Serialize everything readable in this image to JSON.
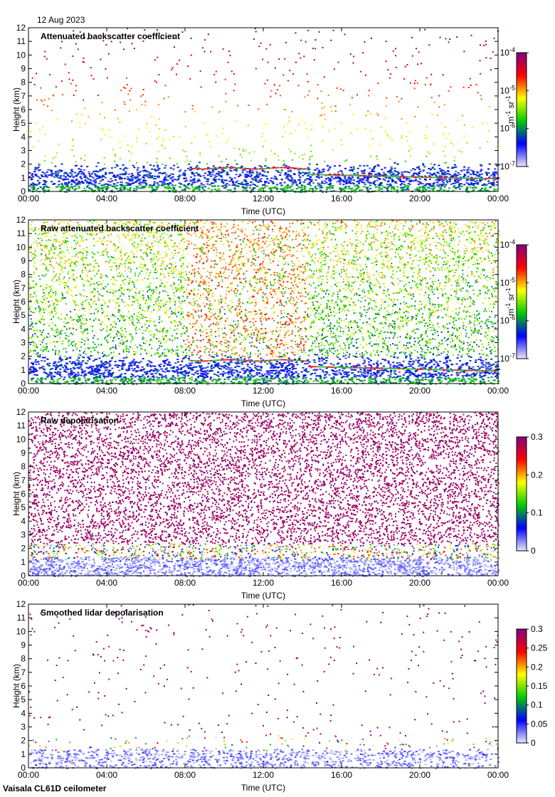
{
  "header": {
    "date": "12 Aug 2023"
  },
  "footer": {
    "instrument": "Vaisala CL61D ceilometer"
  },
  "colors": {
    "scale": [
      "#e8e8ff",
      "#0000ff",
      "#00cc00",
      "#ffff00",
      "#ff0000",
      "#800080"
    ]
  },
  "chart_data": [
    {
      "type": "heatmap",
      "title": "Attenuated backscatter coefficient",
      "xlabel": "Time (UTC)",
      "ylabel": "Height (km)",
      "xlim": [
        "00:00",
        "00:00"
      ],
      "xticks": [
        "00:00",
        "04:00",
        "08:00",
        "12:00",
        "16:00",
        "20:00",
        "00:00"
      ],
      "ylim": [
        0,
        12
      ],
      "yticks": [
        "0",
        "1",
        "2",
        "3",
        "4",
        "5",
        "6",
        "7",
        "8",
        "9",
        "10",
        "11",
        "12"
      ],
      "colorbar": {
        "scale": "log",
        "range": [
          1e-07,
          0.0001
        ],
        "ticks": [
          {
            "base": "10",
            "exp": "-4"
          },
          {
            "base": "10",
            "exp": "-5"
          },
          {
            "base": "10",
            "exp": "-6"
          },
          {
            "base": "10",
            "exp": "-7"
          }
        ],
        "unit": {
          "a": "m",
          "ae": "-1",
          "b": "sr",
          "be": "-1"
        }
      }
    },
    {
      "type": "heatmap",
      "title": "Raw attenuated backscatter coefficient",
      "xlabel": "Time (UTC)",
      "ylabel": "Height (km)",
      "xlim": [
        "00:00",
        "00:00"
      ],
      "xticks": [
        "00:00",
        "04:00",
        "08:00",
        "12:00",
        "16:00",
        "20:00",
        "00:00"
      ],
      "ylim": [
        0,
        12
      ],
      "yticks": [
        "0",
        "1",
        "2",
        "3",
        "4",
        "5",
        "6",
        "7",
        "8",
        "9",
        "10",
        "11",
        "12"
      ],
      "colorbar": {
        "scale": "log",
        "range": [
          1e-07,
          0.0001
        ],
        "ticks": [
          {
            "base": "10",
            "exp": "-4"
          },
          {
            "base": "10",
            "exp": "-5"
          },
          {
            "base": "10",
            "exp": "-6"
          },
          {
            "base": "10",
            "exp": "-7"
          }
        ],
        "unit": {
          "a": "m",
          "ae": "-1",
          "b": "sr",
          "be": "-1"
        }
      }
    },
    {
      "type": "heatmap",
      "title": "Raw depolarisation",
      "xlabel": "Time (UTC)",
      "ylabel": "Height (km)",
      "xlim": [
        "00:00",
        "00:00"
      ],
      "xticks": [
        "00:00",
        "04:00",
        "08:00",
        "12:00",
        "16:00",
        "20:00",
        "00:00"
      ],
      "ylim": [
        0,
        12
      ],
      "yticks": [
        "0",
        "1",
        "2",
        "3",
        "4",
        "5",
        "6",
        "7",
        "8",
        "9",
        "10",
        "11",
        "12"
      ],
      "colorbar": {
        "scale": "linear",
        "range": [
          0,
          0.3
        ],
        "ticks": [
          "0.3",
          "0.2",
          "0.1",
          "0"
        ]
      }
    },
    {
      "type": "heatmap",
      "title": "Smoothed lidar depolarisation",
      "xlabel": "Time (UTC)",
      "ylabel": "Height (km)",
      "xlim": [
        "00:00",
        "00:00"
      ],
      "xticks": [
        "00:00",
        "04:00",
        "08:00",
        "12:00",
        "16:00",
        "20:00",
        "00:00"
      ],
      "ylim": [
        0,
        12
      ],
      "yticks": [
        "0",
        "1",
        "2",
        "3",
        "4",
        "5",
        "6",
        "7",
        "8",
        "9",
        "10",
        "11",
        "12"
      ],
      "colorbar": {
        "scale": "linear",
        "range": [
          0,
          0.3
        ],
        "ticks": [
          "0.3",
          "0.25",
          "0.2",
          "0.15",
          "0.1",
          "0.05",
          "0"
        ]
      }
    }
  ]
}
